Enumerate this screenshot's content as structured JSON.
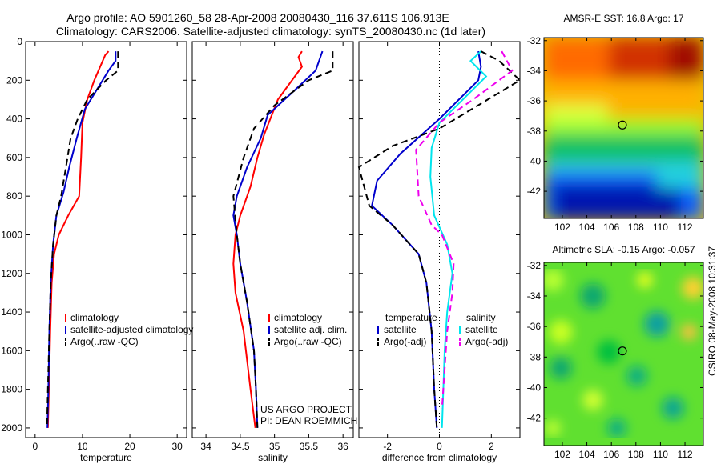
{
  "header": {
    "line1": "Argo profile: AO 5901260_58 28-Apr-2008 20080430_116 37.611S 106.913E",
    "line2": "Climatology: CARS2006. Satellite-adjusted climatology: synTS_20080430.nc (1d later)"
  },
  "side_label": "CSIRO 08-May-2008 10:31:37",
  "credit": [
    "US ARGO PROJECT",
    "PI: DEAN ROEMMICH"
  ],
  "colors": {
    "red": "#ff0000",
    "blue": "#0000cc",
    "black": "#000000",
    "cyan": "#00e5ee",
    "magenta": "#ee00ee"
  },
  "chart_data": [
    {
      "type": "line",
      "xlabel": "temperature",
      "xlim": [
        -2,
        32
      ],
      "ylim": [
        0,
        2050
      ],
      "xticks": [
        "0",
        "10",
        "20",
        "30"
      ],
      "yticks": [
        "0",
        "200",
        "400",
        "600",
        "800",
        "1000",
        "1200",
        "1400",
        "1600",
        "1800",
        "2000"
      ],
      "legend": [
        "climatology",
        "satellite-adjusted climatology",
        "Argo(..raw -QC)"
      ],
      "series": [
        {
          "name": "climatology",
          "color": "red",
          "dash": false,
          "points": [
            [
              15.5,
              50
            ],
            [
              14.8,
              70
            ],
            [
              12.5,
              200
            ],
            [
              11,
              300
            ],
            [
              10,
              420
            ],
            [
              9.7,
              600
            ],
            [
              9.3,
              800
            ],
            [
              7,
              900
            ],
            [
              5,
              1000
            ],
            [
              4,
              1100
            ],
            [
              3.5,
              1250
            ],
            [
              3.2,
              1500
            ],
            [
              2.9,
              1800
            ],
            [
              2.7,
              2000
            ]
          ]
        },
        {
          "name": "satellite-adjusted climatology",
          "color": "blue",
          "dash": false,
          "points": [
            [
              17,
              50
            ],
            [
              17,
              100
            ],
            [
              15.5,
              150
            ],
            [
              13,
              250
            ],
            [
              10.5,
              350
            ],
            [
              8.8,
              500
            ],
            [
              7.2,
              650
            ],
            [
              6,
              780
            ],
            [
              4.5,
              900
            ],
            [
              3.8,
              1050
            ],
            [
              3.3,
              1250
            ],
            [
              3,
              1500
            ],
            [
              2.8,
              1800
            ],
            [
              2.6,
              2000
            ]
          ]
        },
        {
          "name": "Argo(..raw -QC)",
          "color": "black",
          "dash": true,
          "points": [
            [
              17.5,
              50
            ],
            [
              17.5,
              150
            ],
            [
              15,
              200
            ],
            [
              11,
              300
            ],
            [
              9,
              400
            ],
            [
              7.5,
              500
            ],
            [
              6.5,
              650
            ],
            [
              5.5,
              800
            ],
            [
              4.5,
              900
            ],
            [
              3.8,
              1050
            ],
            [
              3.3,
              1250
            ],
            [
              3,
              1500
            ],
            [
              2.7,
              1800
            ],
            [
              2.5,
              2000
            ]
          ]
        }
      ]
    },
    {
      "type": "line",
      "xlabel": "salinity",
      "xlim": [
        33.8,
        36.15
      ],
      "ylim": [
        0,
        2050
      ],
      "xticks": [
        "34",
        "34.5",
        "35",
        "35.5",
        "36"
      ],
      "yticks": [],
      "legend": [
        "climatology",
        "satellite adj. clim.",
        "Argo(..raw -QC)"
      ],
      "series": [
        {
          "name": "climatology",
          "color": "red",
          "dash": false,
          "points": [
            [
              35.4,
              50
            ],
            [
              35.35,
              80
            ],
            [
              35.4,
              130
            ],
            [
              35.05,
              300
            ],
            [
              34.85,
              480
            ],
            [
              34.75,
              600
            ],
            [
              34.65,
              750
            ],
            [
              34.5,
              900
            ],
            [
              34.43,
              1000
            ],
            [
              34.4,
              1150
            ],
            [
              34.43,
              1300
            ],
            [
              34.55,
              1500
            ],
            [
              34.65,
              1800
            ],
            [
              34.72,
              2000
            ]
          ]
        },
        {
          "name": "satellite adj. clim.",
          "color": "blue",
          "dash": false,
          "points": [
            [
              35.7,
              50
            ],
            [
              35.6,
              150
            ],
            [
              35.3,
              250
            ],
            [
              34.9,
              380
            ],
            [
              34.8,
              500
            ],
            [
              34.6,
              650
            ],
            [
              34.45,
              800
            ],
            [
              34.4,
              900
            ],
            [
              34.45,
              1000
            ],
            [
              34.5,
              1150
            ],
            [
              34.6,
              1350
            ],
            [
              34.7,
              1600
            ],
            [
              34.73,
              1800
            ],
            [
              34.75,
              2000
            ]
          ]
        },
        {
          "name": "Argo(..raw -QC)",
          "color": "black",
          "dash": true,
          "points": [
            [
              35.85,
              50
            ],
            [
              35.85,
              150
            ],
            [
              35.5,
              200
            ],
            [
              35,
              330
            ],
            [
              34.7,
              450
            ],
            [
              34.55,
              600
            ],
            [
              34.4,
              800
            ],
            [
              34.45,
              1000
            ],
            [
              34.5,
              1150
            ],
            [
              34.6,
              1350
            ],
            [
              34.7,
              1600
            ],
            [
              34.73,
              1800
            ],
            [
              34.75,
              2000
            ]
          ]
        }
      ]
    },
    {
      "type": "line",
      "xlabel": "difference from climatology",
      "xlim": [
        -3.1,
        3.1
      ],
      "ylim": [
        0,
        2050
      ],
      "xticks": [
        "-2",
        "0",
        "2"
      ],
      "yticks": [],
      "legend_left_title": "temperature",
      "legend_right_title": "salinity",
      "legend": [
        "satellite",
        "Argo(-adj)",
        "satellite",
        "Argo(-adj)"
      ],
      "series": [
        {
          "name": "temperature satellite",
          "color": "blue",
          "dash": false,
          "points": [
            [
              1.5,
              50
            ],
            [
              1.6,
              130
            ],
            [
              1.5,
              200
            ],
            [
              0,
              400
            ],
            [
              -1.5,
              580
            ],
            [
              -2.4,
              720
            ],
            [
              -2.6,
              850
            ],
            [
              -1.8,
              950
            ],
            [
              -0.8,
              1100
            ],
            [
              -0.5,
              1250
            ],
            [
              -0.3,
              1500
            ],
            [
              -0.2,
              1800
            ],
            [
              -0.1,
              2000
            ]
          ]
        },
        {
          "name": "temperature Argo(-adj)",
          "color": "black",
          "dash": true,
          "points": [
            [
              1.6,
              50
            ],
            [
              2.3,
              100
            ],
            [
              3.1,
              200
            ],
            [
              0,
              450
            ],
            [
              -1.8,
              540
            ],
            [
              -3.1,
              650
            ],
            [
              -2.7,
              850
            ],
            [
              -1.8,
              950
            ],
            [
              -0.8,
              1100
            ],
            [
              -0.5,
              1250
            ],
            [
              -0.3,
              1500
            ],
            [
              -0.2,
              1800
            ],
            [
              -0.1,
              2000
            ]
          ]
        },
        {
          "name": "salinity satellite",
          "color": "cyan",
          "dash": false,
          "points": [
            [
              1.6,
              50
            ],
            [
              1.2,
              100
            ],
            [
              1.8,
              180
            ],
            [
              0,
              420
            ],
            [
              -0.3,
              550
            ],
            [
              -0.35,
              700
            ],
            [
              -0.2,
              900
            ],
            [
              0.3,
              1050
            ],
            [
              0.5,
              1200
            ],
            [
              0.3,
              1400
            ],
            [
              0.2,
              1600
            ],
            [
              0.15,
              1800
            ],
            [
              0.1,
              2000
            ]
          ]
        },
        {
          "name": "salinity Argo(-adj)",
          "color": "magenta",
          "dash": true,
          "points": [
            [
              2.4,
              50
            ],
            [
              2.8,
              150
            ],
            [
              1.3,
              300
            ],
            [
              0,
              420
            ],
            [
              -0.9,
              560
            ],
            [
              -0.8,
              800
            ],
            [
              -0.3,
              950
            ],
            [
              0.1,
              1000
            ],
            [
              0.55,
              1150
            ],
            [
              0.5,
              1300
            ],
            [
              0.3,
              1500
            ],
            [
              0.2,
              1700
            ],
            [
              0.1,
              1900
            ]
          ]
        }
      ]
    },
    {
      "type": "heatmap",
      "title": "AMSR-E SST: 16.8 Argo: 17",
      "xlim": [
        100.5,
        113.5
      ],
      "ylim": [
        -43.8,
        -31.8
      ],
      "xticks": [
        "102",
        "104",
        "106",
        "108",
        "110",
        "112"
      ],
      "yticks": [
        "-32",
        "-34",
        "-36",
        "-38",
        "-40",
        "-42"
      ],
      "marker": [
        106.9,
        -37.6
      ]
    },
    {
      "type": "heatmap",
      "title": "Altimetric SLA: -0.15 Argo: -0.057",
      "xlim": [
        100.5,
        113.5
      ],
      "ylim": [
        -43.8,
        -31.8
      ],
      "xticks": [
        "102",
        "104",
        "106",
        "108",
        "110",
        "112"
      ],
      "yticks": [
        "-32",
        "-34",
        "-36",
        "-38",
        "-40",
        "-42"
      ],
      "marker": [
        106.9,
        -37.6
      ]
    }
  ]
}
